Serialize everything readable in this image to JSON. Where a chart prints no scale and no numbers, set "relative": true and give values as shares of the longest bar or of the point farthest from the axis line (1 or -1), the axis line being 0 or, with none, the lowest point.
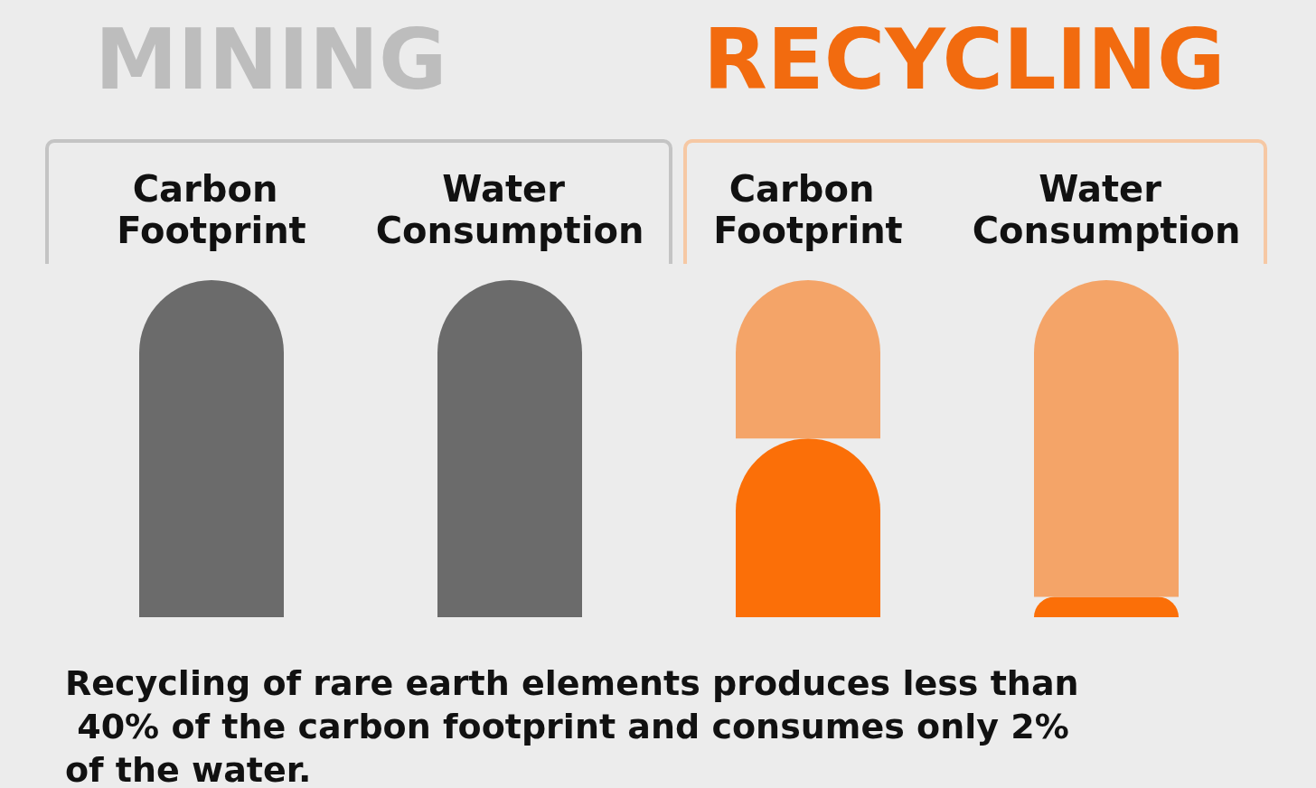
{
  "chart_data": {
    "type": "bar",
    "relative": true,
    "stacked": true,
    "categories": [
      "Carbon Footprint",
      "Water Consumption",
      "Carbon Footprint",
      "Water Consumption"
    ],
    "series": [
      {
        "color": "#6b6b6b",
        "values": [
          1,
          1,
          null,
          null
        ]
      },
      {
        "color": "#fb6f08",
        "values": [
          null,
          null,
          0.53,
          0.06
        ]
      },
      {
        "color": "#f4a468",
        "values": [
          null,
          null,
          0.47,
          0.94
        ]
      }
    ],
    "annotations": [
      "MINING",
      "RECYCLING",
      "Recycling of rare earth elements produces less than 40% of the carbon footprint and consumes only 2% of the water."
    ]
  }
}
